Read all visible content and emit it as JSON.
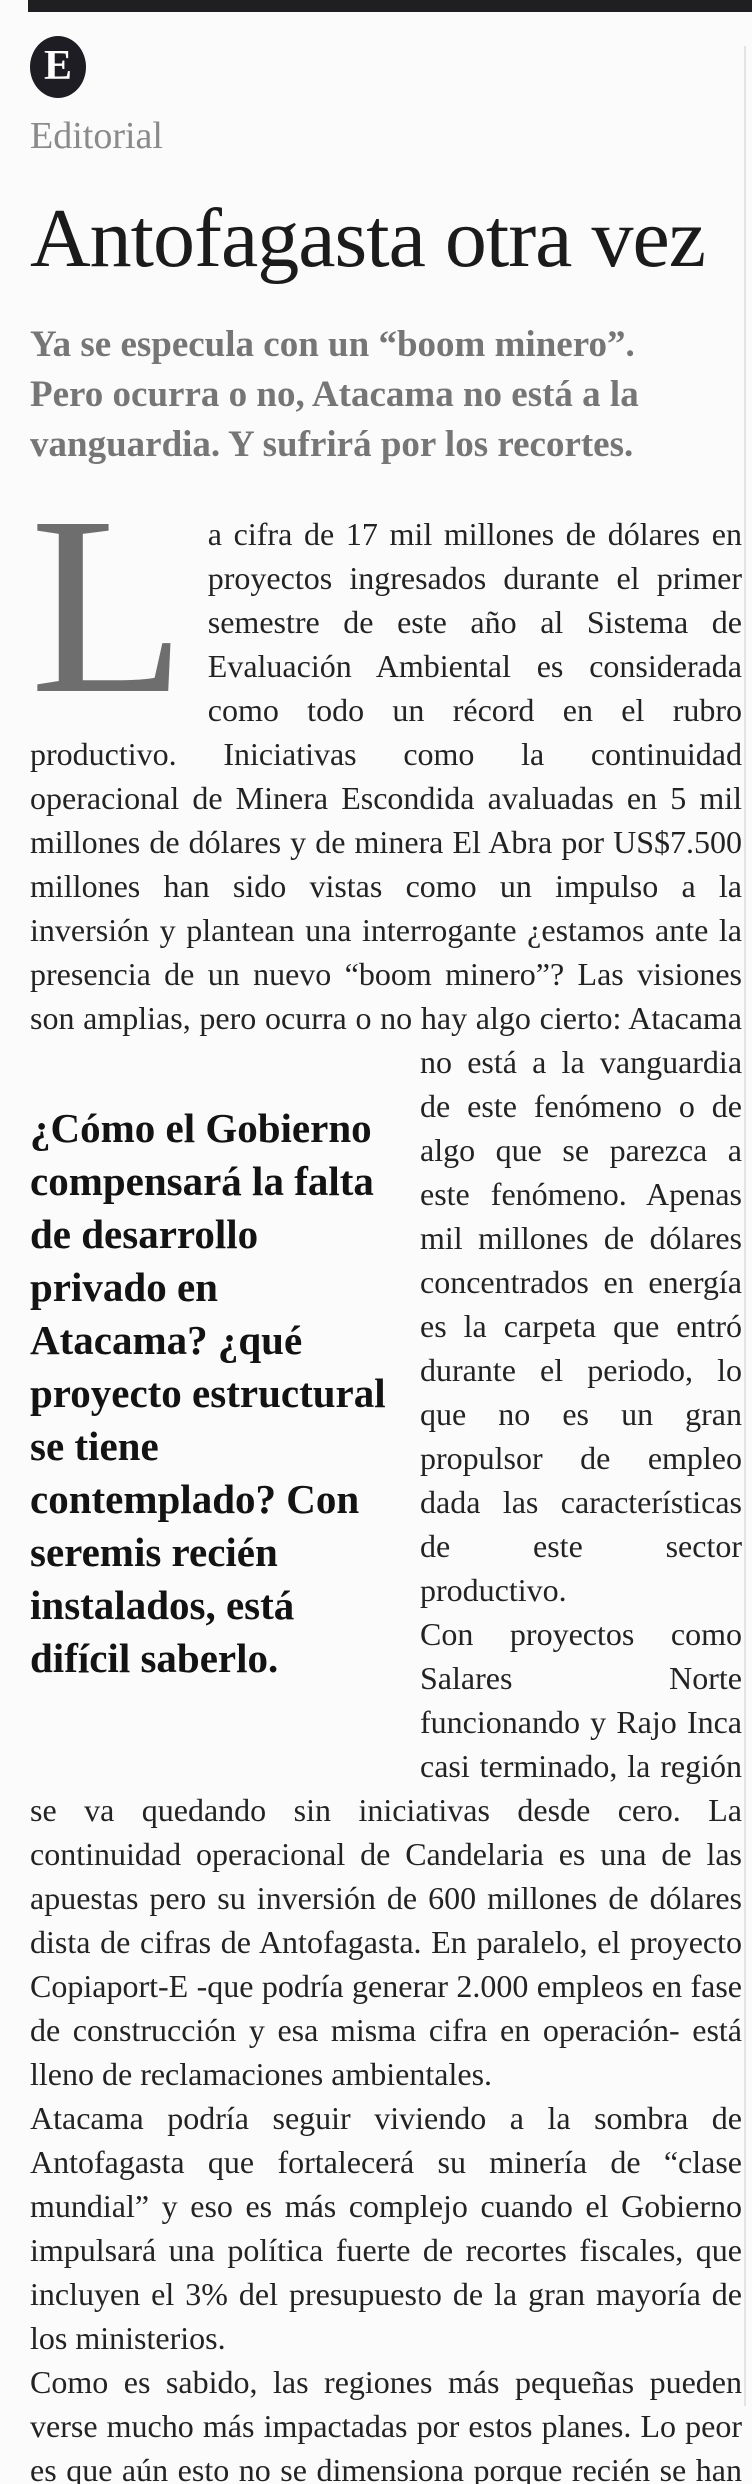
{
  "masthead": {
    "badge_letter": "E",
    "section_label": "Editorial"
  },
  "article": {
    "title": "Antofagasta otra vez",
    "lede": "Ya se especula con un “boom minero”. Pero ocurra o no, Atacama no está a la vanguardia. Y sufrirá por los recortes.",
    "drop_cap": "L",
    "p1_before": "a cifra de 17 mil millones de dólares en proyectos ingresados durante el primer semestre de este año al Sistema de Evaluación Ambiental es considerada como todo un récord en el rubro productivo. Iniciativas como la continuidad operacional de Minera Escondida avaluadas en 5 mil millones de dólares y de minera El Abra por US$7.500 millones han sido vistas como un impulso a la inversión y plantean una interrogante ¿estamos ante la presencia de un nuevo “boom minero”? Las visiones son amplias, pero ocurra o no hay algo cierto: Atacama no está a la",
    "p1_after": "vanguardia de este fenómeno o de algo que se parezca a este fenómeno. Apenas mil millones de dólares concentrados en energía es la carpeta que entró durante el periodo, lo que no es un gran propulsor de empleo dada las características de este sector productivo.",
    "p2": "Con proyectos como Salares Norte funcionando y Rajo Inca casi terminado, la región se va quedando sin iniciativas desde cero. La continuidad operacional de Candelaria es una de las apuestas pero su inversión de 600 millones de dólares dista de cifras de Antofagasta. En paralelo, el proyecto Copiaport-E -que podría generar 2.000 empleos en fase de construcción y esa misma cifra en operación- está lleno de reclamaciones ambientales.",
    "p3": "Atacama podría seguir viviendo a la sombra de Antofagasta que fortalecerá su minería de “clase mundial” y eso es más complejo cuando el Gobierno impulsará una política fuerte de recortes fiscales, que incluyen el 3% del presupuesto de la gran mayoría de los ministerios.",
    "p4": "Como es sabido, las regiones más pequeñas pueden verse mucho más impactadas por estos planes. Lo peor es que aún esto no se dimensiona porque recién se han ido instalando los seremis. ¿Cómo terminará afectada la región?",
    "pull_quote": "¿Cómo el Gobierno compensará la falta de desarrollo privado en Atacama? ¿qué proyecto estructural se tiene contemplado? Con seremis recién instalados, está difícil saberlo."
  },
  "colors": {
    "top_bar": "#1f1f21",
    "badge_background": "#1d1d23",
    "title_text": "#1b1b1b",
    "lede_text": "#767676",
    "body_text": "#232323",
    "drop_cap": "#6e6e6e",
    "section_label": "#8a8a8a",
    "right_rule": "#e4e4e4"
  }
}
